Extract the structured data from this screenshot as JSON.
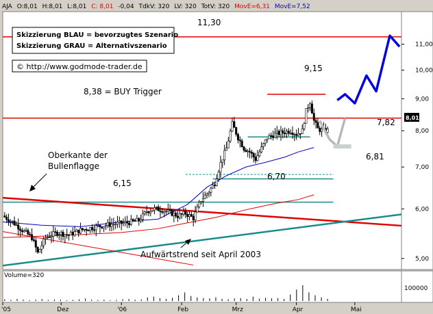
{
  "header": {
    "symbol": "AJA",
    "open": "O:8,01",
    "high": "H:8,01",
    "low": "L:8,01",
    "close": "C: 8,01",
    "change": "-0,04",
    "tkv": "TdkV: 320",
    "lv": "LV: 320",
    "totv": "TotV: 320",
    "move1": "MovE=6,31",
    "move2": "MovE=7,52"
  },
  "legend_box": {
    "line1": "Skizzierung BLAU = bevorzugtes Szenario",
    "line2": "Skizzierung GRAU = Alternativszenario"
  },
  "copyright": "© http://www.godmode-trader.de",
  "annotations": {
    "top_level": "11,30",
    "recent_high": "9,15",
    "buy_trigger": "8,38 = BUY Trigger",
    "support_782": "7,82",
    "support_681": "6,81",
    "support_670": "6,70",
    "level_615": "6,15",
    "flag_top_line1": "Oberkante der",
    "flag_top_line2": "Bullenflagge",
    "uptrend": "Aufwärtstrend seit April 2003"
  },
  "last_price_label": "8,01",
  "volume_label": "Volume=320",
  "volume_axis_label": "100000",
  "chart_data": {
    "type": "candlestick",
    "y_scale": "log",
    "ylim": [
      4.8,
      12.4
    ],
    "y_ticks": [
      "11,00",
      "10,00",
      "9,00",
      "8,00",
      "7,00",
      "6,00",
      "5,00"
    ],
    "y_tick_values": [
      11,
      10,
      9,
      8,
      7,
      6,
      5
    ],
    "x_ticks": [
      "'05",
      "Dez",
      "'06",
      "Feb",
      "Mrz",
      "Apr",
      "Mai"
    ],
    "x_tick_days": [
      0,
      30,
      61,
      92,
      120,
      151,
      181
    ],
    "x_range_days": [
      0,
      205
    ],
    "horizontal_levels": [
      {
        "value": 11.3,
        "color": "#e00000"
      },
      {
        "value": 8.38,
        "color": "#e00000"
      }
    ],
    "short_levels": [
      {
        "value": 9.15,
        "from_day": 136,
        "to_day": 166,
        "color": "#e00000"
      },
      {
        "value": 7.82,
        "from_day": 126,
        "to_day": 158,
        "color": "#1a8a8a"
      },
      {
        "value": 6.81,
        "from_day": 94,
        "to_day": 170,
        "color": "#1a8a8a",
        "dashed": true
      },
      {
        "value": 6.7,
        "from_day": 108,
        "to_day": 170,
        "color": "#1a8a8a"
      },
      {
        "value": 6.15,
        "from_day": 0,
        "to_day": 170,
        "color": "#1a8a8a"
      }
    ],
    "trend_lines": [
      {
        "name": "Oberkante der Bullenflagge",
        "from": [
          0,
          6.25
        ],
        "to": [
          205,
          5.64
        ],
        "color": "#e00000"
      },
      {
        "name": "Aufwärtstrend seit April 2003",
        "from": [
          0,
          4.87
        ],
        "to": [
          205,
          5.88
        ],
        "color": "#1a8a8a"
      },
      {
        "name": "",
        "from": [
          0,
          5.52
        ],
        "to": [
          98,
          4.88
        ],
        "color": "#e00000"
      }
    ],
    "moving_averages": [
      {
        "label": "MovE=6,31",
        "color": "#e00000",
        "points": [
          [
            0,
            5.4
          ],
          [
            30,
            5.44
          ],
          [
            61,
            5.5
          ],
          [
            80,
            5.58
          ],
          [
            95,
            5.7
          ],
          [
            110,
            5.82
          ],
          [
            125,
            5.98
          ],
          [
            140,
            6.12
          ],
          [
            152,
            6.21
          ],
          [
            160,
            6.32
          ]
        ]
      },
      {
        "label": "MovE=7,52",
        "color": "#0000c0",
        "points": [
          [
            0,
            5.72
          ],
          [
            20,
            5.65
          ],
          [
            40,
            5.62
          ],
          [
            61,
            5.72
          ],
          [
            80,
            5.78
          ],
          [
            95,
            6.1
          ],
          [
            105,
            6.5
          ],
          [
            115,
            6.78
          ],
          [
            125,
            7.0
          ],
          [
            135,
            7.12
          ],
          [
            145,
            7.26
          ],
          [
            152,
            7.4
          ],
          [
            160,
            7.52
          ]
        ]
      }
    ],
    "close_path": [
      [
        0,
        5.85
      ],
      [
        5,
        5.72
      ],
      [
        10,
        5.55
      ],
      [
        15,
        5.4
      ],
      [
        18,
        5.1
      ],
      [
        22,
        5.4
      ],
      [
        28,
        5.5
      ],
      [
        34,
        5.45
      ],
      [
        40,
        5.55
      ],
      [
        46,
        5.6
      ],
      [
        52,
        5.65
      ],
      [
        58,
        5.68
      ],
      [
        64,
        5.7
      ],
      [
        70,
        5.75
      ],
      [
        74,
        5.95
      ],
      [
        78,
        6.0
      ],
      [
        82,
        5.98
      ],
      [
        86,
        5.92
      ],
      [
        90,
        5.85
      ],
      [
        94,
        5.9
      ],
      [
        98,
        5.8
      ],
      [
        102,
        6.2
      ],
      [
        106,
        6.4
      ],
      [
        109,
        6.6
      ],
      [
        112,
        7.1
      ],
      [
        115,
        7.5
      ],
      [
        118,
        8.2
      ],
      [
        121,
        7.8
      ],
      [
        124,
        7.5
      ],
      [
        127,
        7.4
      ],
      [
        130,
        7.2
      ],
      [
        133,
        7.5
      ],
      [
        136,
        7.8
      ],
      [
        140,
        7.9
      ],
      [
        144,
        7.95
      ],
      [
        148,
        8.0
      ],
      [
        151,
        7.9
      ],
      [
        154,
        8.0
      ],
      [
        156,
        8.6
      ],
      [
        158,
        8.9
      ],
      [
        160,
        8.3
      ],
      [
        162,
        8.05
      ],
      [
        165,
        8.0
      ],
      [
        167,
        8.01
      ]
    ],
    "scenario_blue": [
      [
        172,
        8.95
      ],
      [
        176,
        9.15
      ],
      [
        181,
        8.85
      ],
      [
        187,
        9.8
      ],
      [
        192,
        9.25
      ],
      [
        199,
        11.35
      ],
      [
        204,
        10.9
      ]
    ],
    "scenario_grey": [
      [
        163,
        8.3
      ],
      [
        168,
        7.75
      ],
      [
        172,
        7.55
      ],
      [
        176,
        8.38
      ]
    ],
    "volume": {
      "ylim": [
        0,
        200000
      ],
      "bars": [
        12000,
        8000,
        15000,
        10000,
        6000,
        9000,
        14000,
        7000,
        11000,
        9000,
        5000,
        8000,
        12000,
        18000,
        9000,
        7000,
        10000,
        6000,
        8000,
        12000,
        14000,
        9000,
        11000,
        25000,
        30000,
        20000,
        15000,
        22000,
        40000,
        60000,
        35000,
        25000,
        20000,
        18000,
        26000,
        15000,
        12000,
        18000,
        20000,
        14000,
        30000,
        16000,
        22000,
        18000,
        20000,
        15000,
        45000,
        80000,
        110000,
        60000,
        40000,
        25000,
        15000
      ]
    }
  }
}
